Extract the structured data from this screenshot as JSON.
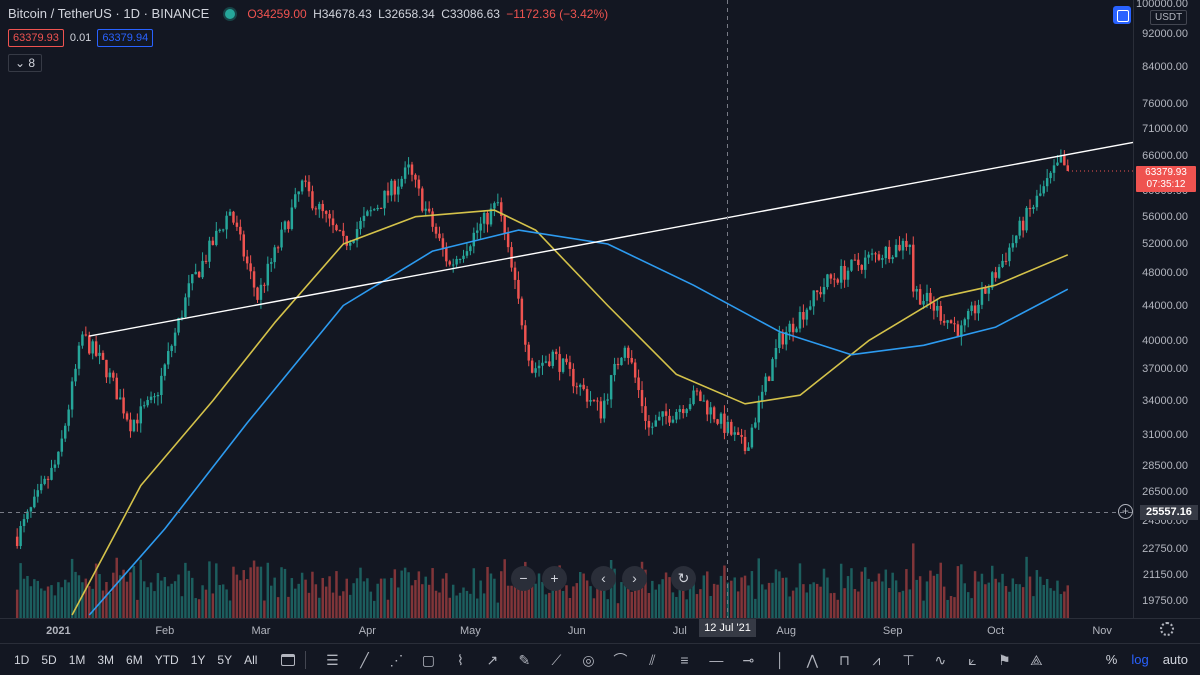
{
  "header": {
    "title": "Bitcoin / TetherUS · 1D · BINANCE",
    "open": "O34259.00",
    "high": "H34678.43",
    "low": "L32658.34",
    "close": "C33086.63",
    "change": "−1172.36 (−3.42%)",
    "bid": "63379.93",
    "spread": "0.01",
    "ask": "63379.94",
    "indicators_count": "8"
  },
  "price_axis": {
    "currency": "USDT",
    "labels": [
      "100000.00",
      "92000.00",
      "84000.00",
      "76000.00",
      "71000.00",
      "66000.00",
      "60000.00",
      "56000.00",
      "52000.00",
      "48000.00",
      "44000.00",
      "40000.00",
      "37000.00",
      "34000.00",
      "31000.00",
      "28500.00",
      "26500.00",
      "24500.00",
      "22750.00",
      "21150.00",
      "19750.00"
    ],
    "last_price": "63379.93",
    "countdown": "07:35:12",
    "crosshair_price": "25557.16"
  },
  "time_axis": {
    "labels": [
      "2021",
      "Feb",
      "Mar",
      "Apr",
      "May",
      "Jun",
      "Jul",
      "Aug",
      "Sep",
      "Oct",
      "Nov"
    ],
    "crosshair_date": "12 Jul '21"
  },
  "bottom_bar": {
    "ranges": [
      "1D",
      "5D",
      "1M",
      "3M",
      "6M",
      "YTD",
      "1Y",
      "5Y",
      "All"
    ],
    "percent": "%",
    "log": "log",
    "auto": "auto"
  },
  "colors": {
    "up": "#26a69a",
    "down": "#ef5350",
    "ma_short": "#d4c24a",
    "ma_long": "#2d9bf0",
    "trendline": "#ffffff",
    "background": "#131722"
  },
  "chart_data": {
    "type": "candlestick",
    "title": "Bitcoin / TetherUS · 1D · BINANCE",
    "y_scale": "log",
    "ylim": [
      19000,
      100000
    ],
    "x_range": [
      "2020-12-15",
      "2021-11-10"
    ],
    "price_points": [
      {
        "date": "2020-12-20",
        "close": 23500
      },
      {
        "date": "2021-01-01",
        "close": 29000
      },
      {
        "date": "2021-01-08",
        "close": 40500
      },
      {
        "date": "2021-01-15",
        "close": 37000
      },
      {
        "date": "2021-01-22",
        "close": 32000
      },
      {
        "date": "2021-01-29",
        "close": 34000
      },
      {
        "date": "2021-02-08",
        "close": 46000
      },
      {
        "date": "2021-02-20",
        "close": 57000
      },
      {
        "date": "2021-02-28",
        "close": 45000
      },
      {
        "date": "2021-03-13",
        "close": 61000
      },
      {
        "date": "2021-03-25",
        "close": 52000
      },
      {
        "date": "2021-04-13",
        "close": 63500
      },
      {
        "date": "2021-04-25",
        "close": 49000
      },
      {
        "date": "2021-05-09",
        "close": 58000
      },
      {
        "date": "2021-05-19",
        "close": 37000
      },
      {
        "date": "2021-05-25",
        "close": 38500
      },
      {
        "date": "2021-06-08",
        "close": 33000
      },
      {
        "date": "2021-06-15",
        "close": 40000
      },
      {
        "date": "2021-06-22",
        "close": 31500
      },
      {
        "date": "2021-07-06",
        "close": 34500
      },
      {
        "date": "2021-07-20",
        "close": 29800
      },
      {
        "date": "2021-07-30",
        "close": 40000
      },
      {
        "date": "2021-08-13",
        "close": 47000
      },
      {
        "date": "2021-08-23",
        "close": 49500
      },
      {
        "date": "2021-09-06",
        "close": 52500
      },
      {
        "date": "2021-09-07",
        "close": 46000
      },
      {
        "date": "2021-09-21",
        "close": 41000
      },
      {
        "date": "2021-10-01",
        "close": 48000
      },
      {
        "date": "2021-10-10",
        "close": 56000
      },
      {
        "date": "2021-10-20",
        "close": 65000
      },
      {
        "date": "2021-10-22",
        "close": 63380
      }
    ],
    "trendline": {
      "start": {
        "date": "2021-01-10",
        "price": 40500
      },
      "end": {
        "date": "2021-11-10",
        "price": 68500
      }
    },
    "ma_short": [
      {
        "date": "2021-01-05",
        "value": 19000
      },
      {
        "date": "2021-01-25",
        "value": 27000
      },
      {
        "date": "2021-02-15",
        "value": 34000
      },
      {
        "date": "2021-03-05",
        "value": 42000
      },
      {
        "date": "2021-03-25",
        "value": 52000
      },
      {
        "date": "2021-04-15",
        "value": 56000
      },
      {
        "date": "2021-05-08",
        "value": 57000
      },
      {
        "date": "2021-05-20",
        "value": 54000
      },
      {
        "date": "2021-06-10",
        "value": 44000
      },
      {
        "date": "2021-06-30",
        "value": 36500
      },
      {
        "date": "2021-07-20",
        "value": 33700
      },
      {
        "date": "2021-08-05",
        "value": 34500
      },
      {
        "date": "2021-08-25",
        "value": 40000
      },
      {
        "date": "2021-09-15",
        "value": 45000
      },
      {
        "date": "2021-10-01",
        "value": 46500
      },
      {
        "date": "2021-10-22",
        "value": 50500
      }
    ],
    "ma_long": [
      {
        "date": "2021-01-10",
        "value": 19000
      },
      {
        "date": "2021-02-01",
        "value": 24000
      },
      {
        "date": "2021-02-25",
        "value": 32000
      },
      {
        "date": "2021-03-25",
        "value": 44000
      },
      {
        "date": "2021-04-20",
        "value": 51000
      },
      {
        "date": "2021-05-15",
        "value": 54000
      },
      {
        "date": "2021-06-10",
        "value": 52000
      },
      {
        "date": "2021-07-05",
        "value": 46500
      },
      {
        "date": "2021-07-30",
        "value": 41000
      },
      {
        "date": "2021-08-20",
        "value": 38500
      },
      {
        "date": "2021-09-10",
        "value": 39500
      },
      {
        "date": "2021-10-01",
        "value": 41500
      },
      {
        "date": "2021-10-22",
        "value": 46000
      }
    ]
  }
}
